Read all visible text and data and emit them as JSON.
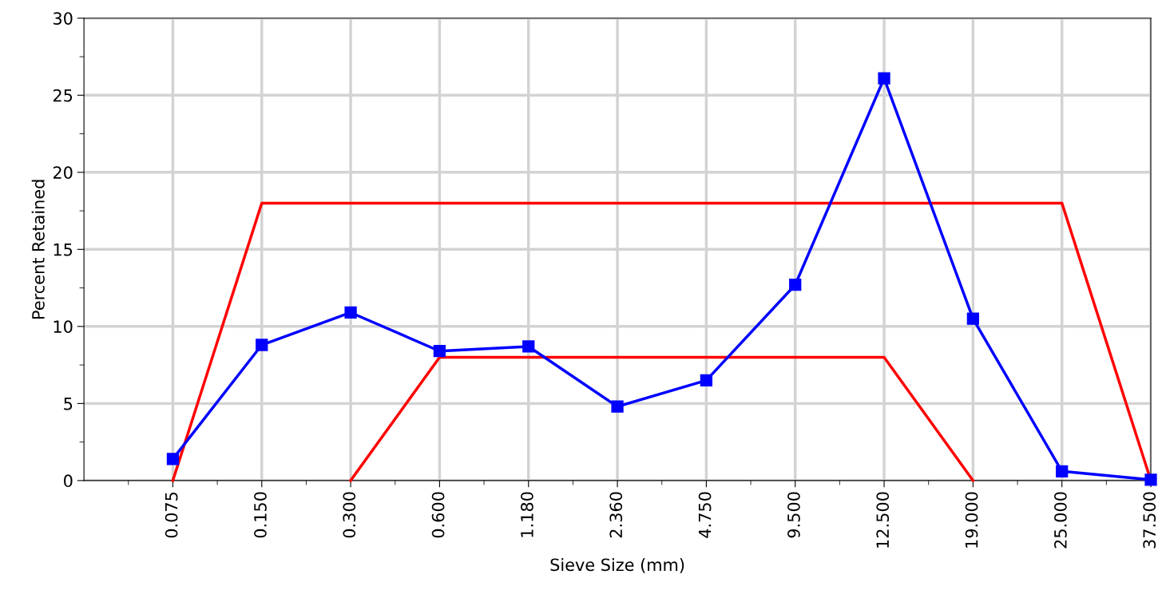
{
  "chart_data": {
    "type": "line",
    "xlabel": "Sieve Size (mm)",
    "ylabel": "Percent Retained",
    "categories": [
      "0.075",
      "0.150",
      "0.300",
      "0.600",
      "1.180",
      "2.360",
      "4.750",
      "9.500",
      "12.500",
      "19.000",
      "25.000",
      "37.500"
    ],
    "series": [
      {
        "color": "#ff0000",
        "marker": "none",
        "values": [
          0,
          18,
          18,
          18,
          18,
          18,
          18,
          18,
          18,
          18,
          18,
          0
        ]
      },
      {
        "color": "#ff0000",
        "marker": "none",
        "values": [
          null,
          null,
          0,
          8,
          8,
          8,
          8,
          8,
          8,
          0,
          null,
          null
        ]
      },
      {
        "color": "#0000ff",
        "marker": "square",
        "values": [
          1.4,
          8.8,
          10.9,
          8.4,
          8.7,
          4.8,
          6.5,
          12.7,
          26.1,
          10.5,
          0.6,
          0.05
        ]
      }
    ],
    "ylim": [
      0,
      30
    ],
    "yticks": [
      0,
      5,
      10,
      15,
      20,
      25,
      30
    ],
    "grid": true,
    "legend": false,
    "line_style": "solid"
  }
}
